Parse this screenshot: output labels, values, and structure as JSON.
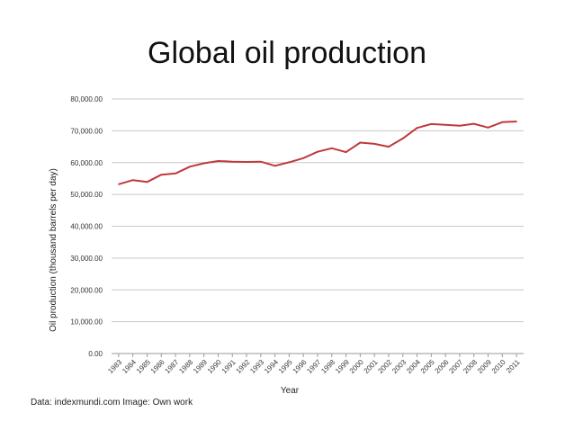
{
  "title": "Global oil production",
  "source": "Data: indexmundi.com Image: Own work",
  "colors": {
    "line": "#c0393b",
    "grid": "#c8c8c8"
  },
  "chart_data": {
    "type": "line",
    "title": "Global oil production",
    "xlabel": "Year",
    "ylabel": "Oil production (thousand barrels per day)",
    "ylim": [
      0,
      80000
    ],
    "yticks": [
      0,
      10000,
      20000,
      30000,
      40000,
      50000,
      60000,
      70000,
      80000
    ],
    "ytick_labels": [
      "0.00",
      "10,000.00",
      "20,000.00",
      "30,000.00",
      "40,000.00",
      "50,000.00",
      "60,000.00",
      "70,000.00",
      "80,000.00"
    ],
    "grid": true,
    "categories": [
      "1983",
      "1984",
      "1985",
      "1986",
      "1987",
      "1988",
      "1989",
      "1990",
      "1991",
      "1992",
      "1993",
      "1994",
      "1995",
      "1996",
      "1997",
      "1998",
      "1999",
      "2000",
      "2001",
      "2002",
      "2003",
      "2004",
      "2005",
      "2006",
      "2007",
      "2008",
      "2009",
      "2010",
      "2011"
    ],
    "series": [
      {
        "name": "Oil production",
        "values": [
          53200,
          54500,
          53900,
          56200,
          56600,
          58700,
          59800,
          60500,
          60300,
          60200,
          60300,
          59000,
          60100,
          61400,
          63400,
          64500,
          63300,
          66300,
          65900,
          65000,
          67600,
          70900,
          72100,
          71900,
          71600,
          72200,
          71000,
          72700,
          72900
        ]
      }
    ]
  }
}
